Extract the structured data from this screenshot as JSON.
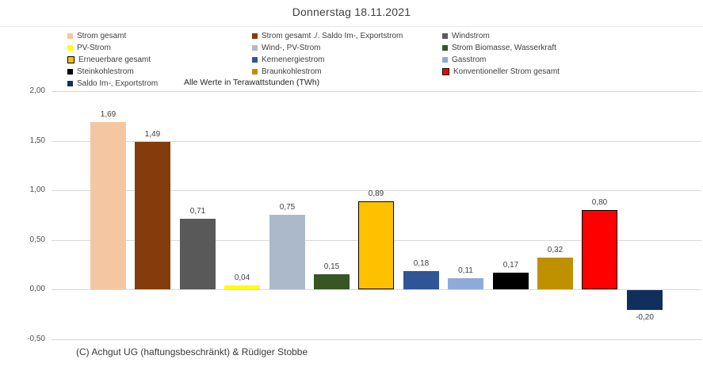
{
  "title": "Donnerstag 18.11.2021",
  "footer": "(C) Achgut UG (haftungsbeschränkt) & Rüdiger Stobbe",
  "chart_data": {
    "type": "bar",
    "title": "Donnerstag 18.11.2021",
    "unit_note": "Alle Werte in Terawattstunden (TWh)",
    "categories": [
      "Strom gesamt",
      "Strom gesamt ./. Saldo Im-, Exportstrom",
      "Windstrom",
      "PV-Strom",
      "Wind-, PV-Strom",
      "Strom Biomasse, Wasserkraft",
      "Erneuerbare gesamt",
      "Kernenergiestrom",
      "Gasstrom",
      "Steinkohlestrom",
      "Braunkohlestrom",
      "Konventioneller Strom gesamt",
      "Saldo Im-, Exportstrom"
    ],
    "values": [
      1.69,
      1.49,
      0.71,
      0.04,
      0.75,
      0.15,
      0.89,
      0.18,
      0.11,
      0.17,
      0.32,
      0.8,
      -0.2
    ],
    "labels": [
      "1,69",
      "1,49",
      "0,71",
      "0,04",
      "0,75",
      "0,15",
      "0,89",
      "0,18",
      "0,11",
      "0,17",
      "0,32",
      "0,80",
      "-0,20"
    ],
    "colors": [
      "#F4C7A2",
      "#843C0C",
      "#595959",
      "#FFFF00",
      "#ACB9CA",
      "#375623",
      "#FFC000",
      "#2F5597",
      "#8EAADB",
      "#000000",
      "#BF9000",
      "#FF0000",
      "#112F5C"
    ],
    "bar_borders": [
      null,
      null,
      null,
      null,
      null,
      null,
      "#000000",
      null,
      null,
      null,
      null,
      "#000000",
      null
    ],
    "ylim": [
      -0.5,
      2.0
    ],
    "yticks": [
      {
        "value": 2.0,
        "label": "2,00"
      },
      {
        "value": 1.5,
        "label": "1,50"
      },
      {
        "value": 1.0,
        "label": "1,00"
      },
      {
        "value": 0.5,
        "label": "0,50"
      },
      {
        "value": 0.0,
        "label": "0,00"
      },
      {
        "value": -0.5,
        "label": "-0,50"
      }
    ],
    "grid": true,
    "legend_position": "top",
    "x_tick_labels_shown": false
  },
  "legend": {
    "columns": [
      {
        "items": [
          {
            "label": "Strom gesamt",
            "color": "#F4C7A2"
          },
          {
            "label": "PV-Strom",
            "color": "#FFFF00"
          },
          {
            "label": "Erneuerbare gesamt",
            "color": "#FFC000",
            "border": "#000000"
          },
          {
            "label": "Steinkohlestrom",
            "color": "#000000"
          },
          {
            "label": "Saldo Im-, Exportstrom",
            "color": "#112F5C"
          }
        ]
      },
      {
        "items": [
          {
            "label": "Strom gesamt ./. Saldo Im-, Exportstrom",
            "color": "#843C0C"
          },
          {
            "label": "Wind-, PV-Strom",
            "color": "#ACB9CA"
          },
          {
            "label": "Kernenergiestrom",
            "color": "#2F5597"
          },
          {
            "label": "Braunkohlestrom",
            "color": "#BF9000"
          }
        ]
      },
      {
        "items": [
          {
            "label": "Windstrom",
            "color": "#595959"
          },
          {
            "label": "Strom Biomasse, Wasserkraft",
            "color": "#375623"
          },
          {
            "label": "Gasstrom",
            "color": "#8EAADB"
          },
          {
            "label": "Konventioneller Strom gesamt",
            "color": "#FF0000",
            "border": "#000000"
          }
        ]
      }
    ]
  }
}
